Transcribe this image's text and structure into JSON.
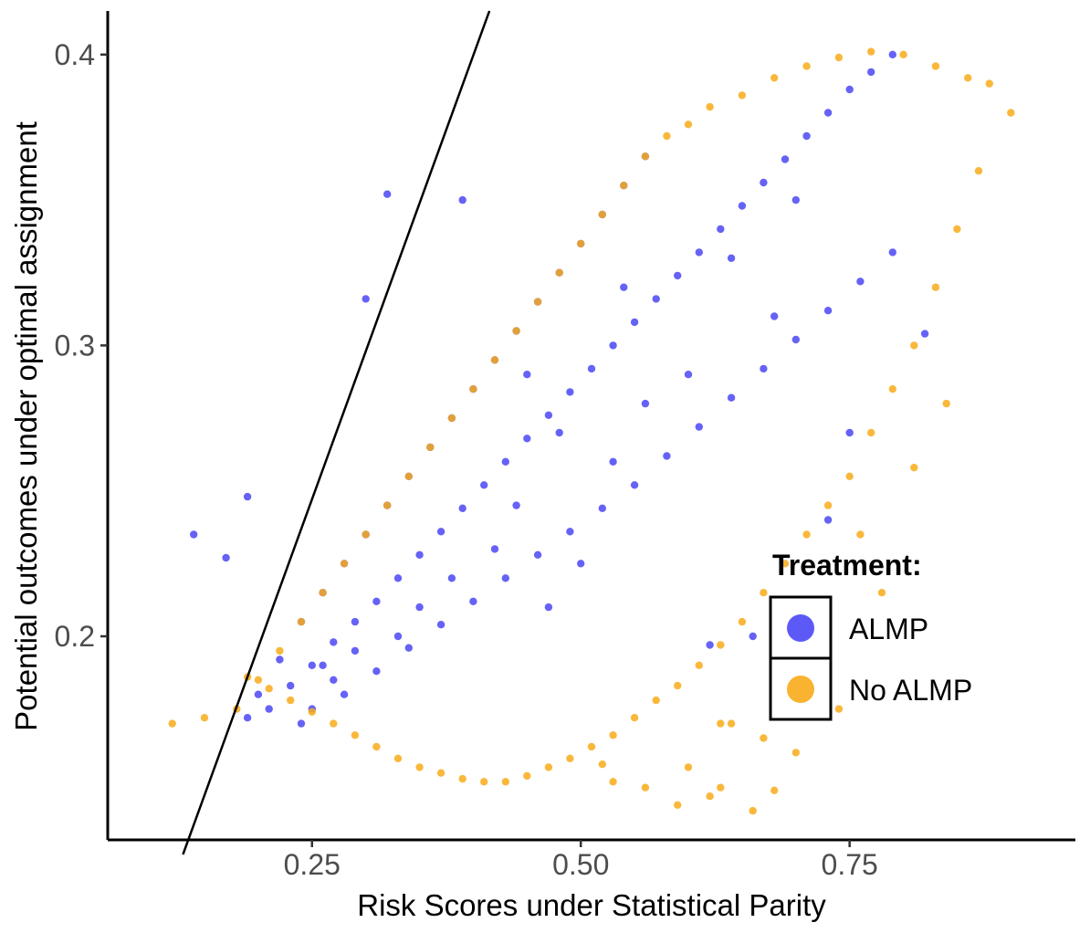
{
  "chart_data": {
    "type": "scatter",
    "title": "",
    "xlabel": "Risk Scores under Statistical Parity",
    "ylabel": "Potential outcomes under optimal assignment",
    "xlim": [
      0.06,
      0.96
    ],
    "ylim": [
      0.13,
      0.415
    ],
    "x_ticks": [
      0.25,
      0.5,
      0.75
    ],
    "x_tick_labels": [
      "0.25",
      "0.50",
      "0.75"
    ],
    "y_ticks": [
      0.2,
      0.3,
      0.4
    ],
    "y_tick_labels": [
      "0.2",
      "0.3",
      "0.4"
    ],
    "grid": false,
    "legend": {
      "title": "Treatment:",
      "position": "bottom-right",
      "entries": [
        {
          "label": "ALMP",
          "color": "#4b47f5"
        },
        {
          "label": "No ALMP",
          "color": "#f8ab1a"
        }
      ]
    },
    "series": [
      {
        "name": "ALMP",
        "color": "#4b47f5",
        "points": [
          [
            0.21,
            0.175
          ],
          [
            0.23,
            0.183
          ],
          [
            0.25,
            0.19
          ],
          [
            0.27,
            0.198
          ],
          [
            0.29,
            0.205
          ],
          [
            0.31,
            0.212
          ],
          [
            0.33,
            0.22
          ],
          [
            0.35,
            0.228
          ],
          [
            0.37,
            0.236
          ],
          [
            0.39,
            0.244
          ],
          [
            0.41,
            0.252
          ],
          [
            0.43,
            0.26
          ],
          [
            0.45,
            0.268
          ],
          [
            0.47,
            0.276
          ],
          [
            0.49,
            0.284
          ],
          [
            0.51,
            0.292
          ],
          [
            0.53,
            0.3
          ],
          [
            0.55,
            0.308
          ],
          [
            0.57,
            0.316
          ],
          [
            0.59,
            0.324
          ],
          [
            0.61,
            0.332
          ],
          [
            0.63,
            0.34
          ],
          [
            0.65,
            0.348
          ],
          [
            0.67,
            0.356
          ],
          [
            0.69,
            0.364
          ],
          [
            0.71,
            0.372
          ],
          [
            0.73,
            0.38
          ],
          [
            0.75,
            0.388
          ],
          [
            0.77,
            0.394
          ],
          [
            0.79,
            0.4
          ],
          [
            0.19,
            0.172
          ],
          [
            0.2,
            0.18
          ],
          [
            0.22,
            0.192
          ],
          [
            0.24,
            0.205
          ],
          [
            0.26,
            0.215
          ],
          [
            0.28,
            0.225
          ],
          [
            0.3,
            0.235
          ],
          [
            0.32,
            0.245
          ],
          [
            0.34,
            0.255
          ],
          [
            0.36,
            0.265
          ],
          [
            0.38,
            0.275
          ],
          [
            0.4,
            0.285
          ],
          [
            0.42,
            0.295
          ],
          [
            0.44,
            0.305
          ],
          [
            0.46,
            0.315
          ],
          [
            0.48,
            0.325
          ],
          [
            0.5,
            0.335
          ],
          [
            0.52,
            0.345
          ],
          [
            0.54,
            0.355
          ],
          [
            0.56,
            0.365
          ],
          [
            0.25,
            0.175
          ],
          [
            0.28,
            0.18
          ],
          [
            0.31,
            0.188
          ],
          [
            0.34,
            0.196
          ],
          [
            0.37,
            0.204
          ],
          [
            0.4,
            0.212
          ],
          [
            0.43,
            0.22
          ],
          [
            0.46,
            0.228
          ],
          [
            0.49,
            0.236
          ],
          [
            0.52,
            0.244
          ],
          [
            0.55,
            0.252
          ],
          [
            0.58,
            0.262
          ],
          [
            0.61,
            0.272
          ],
          [
            0.64,
            0.282
          ],
          [
            0.67,
            0.292
          ],
          [
            0.7,
            0.302
          ],
          [
            0.73,
            0.312
          ],
          [
            0.76,
            0.322
          ],
          [
            0.79,
            0.332
          ],
          [
            0.82,
            0.304
          ],
          [
            0.14,
            0.235
          ],
          [
            0.17,
            0.227
          ],
          [
            0.19,
            0.248
          ],
          [
            0.3,
            0.316
          ],
          [
            0.32,
            0.352
          ],
          [
            0.39,
            0.35
          ],
          [
            0.75,
            0.27
          ],
          [
            0.73,
            0.24
          ],
          [
            0.66,
            0.2
          ],
          [
            0.62,
            0.197
          ],
          [
            0.47,
            0.21
          ],
          [
            0.5,
            0.225
          ],
          [
            0.44,
            0.245
          ],
          [
            0.35,
            0.21
          ],
          [
            0.27,
            0.185
          ],
          [
            0.24,
            0.17
          ],
          [
            0.6,
            0.29
          ],
          [
            0.64,
            0.33
          ],
          [
            0.7,
            0.35
          ],
          [
            0.68,
            0.31
          ],
          [
            0.56,
            0.28
          ],
          [
            0.53,
            0.26
          ],
          [
            0.48,
            0.27
          ],
          [
            0.42,
            0.23
          ],
          [
            0.38,
            0.22
          ],
          [
            0.33,
            0.2
          ],
          [
            0.29,
            0.195
          ],
          [
            0.26,
            0.19
          ],
          [
            0.45,
            0.29
          ],
          [
            0.54,
            0.32
          ]
        ]
      },
      {
        "name": "No ALMP",
        "color": "#f8ab1a",
        "points": [
          [
            0.12,
            0.17
          ],
          [
            0.15,
            0.172
          ],
          [
            0.18,
            0.175
          ],
          [
            0.2,
            0.185
          ],
          [
            0.22,
            0.195
          ],
          [
            0.24,
            0.205
          ],
          [
            0.26,
            0.215
          ],
          [
            0.28,
            0.225
          ],
          [
            0.3,
            0.235
          ],
          [
            0.32,
            0.245
          ],
          [
            0.34,
            0.255
          ],
          [
            0.36,
            0.265
          ],
          [
            0.38,
            0.275
          ],
          [
            0.4,
            0.285
          ],
          [
            0.42,
            0.295
          ],
          [
            0.44,
            0.305
          ],
          [
            0.46,
            0.315
          ],
          [
            0.48,
            0.325
          ],
          [
            0.5,
            0.335
          ],
          [
            0.52,
            0.345
          ],
          [
            0.54,
            0.355
          ],
          [
            0.56,
            0.365
          ],
          [
            0.58,
            0.372
          ],
          [
            0.6,
            0.376
          ],
          [
            0.62,
            0.382
          ],
          [
            0.65,
            0.386
          ],
          [
            0.68,
            0.392
          ],
          [
            0.71,
            0.396
          ],
          [
            0.74,
            0.399
          ],
          [
            0.77,
            0.401
          ],
          [
            0.8,
            0.4
          ],
          [
            0.83,
            0.396
          ],
          [
            0.86,
            0.392
          ],
          [
            0.88,
            0.39
          ],
          [
            0.9,
            0.38
          ],
          [
            0.87,
            0.36
          ],
          [
            0.85,
            0.34
          ],
          [
            0.83,
            0.32
          ],
          [
            0.81,
            0.3
          ],
          [
            0.79,
            0.285
          ],
          [
            0.77,
            0.27
          ],
          [
            0.75,
            0.255
          ],
          [
            0.73,
            0.245
          ],
          [
            0.71,
            0.235
          ],
          [
            0.69,
            0.225
          ],
          [
            0.67,
            0.215
          ],
          [
            0.65,
            0.205
          ],
          [
            0.63,
            0.197
          ],
          [
            0.61,
            0.19
          ],
          [
            0.59,
            0.183
          ],
          [
            0.57,
            0.178
          ],
          [
            0.55,
            0.172
          ],
          [
            0.53,
            0.166
          ],
          [
            0.51,
            0.162
          ],
          [
            0.49,
            0.158
          ],
          [
            0.47,
            0.155
          ],
          [
            0.45,
            0.152
          ],
          [
            0.43,
            0.15
          ],
          [
            0.41,
            0.15
          ],
          [
            0.39,
            0.151
          ],
          [
            0.37,
            0.153
          ],
          [
            0.35,
            0.155
          ],
          [
            0.33,
            0.158
          ],
          [
            0.31,
            0.162
          ],
          [
            0.29,
            0.166
          ],
          [
            0.27,
            0.17
          ],
          [
            0.25,
            0.174
          ],
          [
            0.23,
            0.178
          ],
          [
            0.21,
            0.182
          ],
          [
            0.19,
            0.186
          ],
          [
            0.62,
            0.145
          ],
          [
            0.59,
            0.142
          ],
          [
            0.66,
            0.14
          ],
          [
            0.56,
            0.148
          ],
          [
            0.63,
            0.148
          ],
          [
            0.68,
            0.147
          ],
          [
            0.53,
            0.15
          ],
          [
            0.7,
            0.16
          ],
          [
            0.64,
            0.17
          ],
          [
            0.6,
            0.155
          ],
          [
            0.52,
            0.156
          ],
          [
            0.72,
            0.18
          ],
          [
            0.74,
            0.175
          ],
          [
            0.67,
            0.165
          ],
          [
            0.63,
            0.17
          ],
          [
            0.69,
            0.19
          ],
          [
            0.78,
            0.215
          ],
          [
            0.81,
            0.258
          ],
          [
            0.84,
            0.28
          ],
          [
            0.76,
            0.235
          ]
        ]
      }
    ],
    "reference_line": {
      "x": [
        0.13,
        0.415
      ],
      "y": [
        0.125,
        0.415
      ]
    }
  }
}
